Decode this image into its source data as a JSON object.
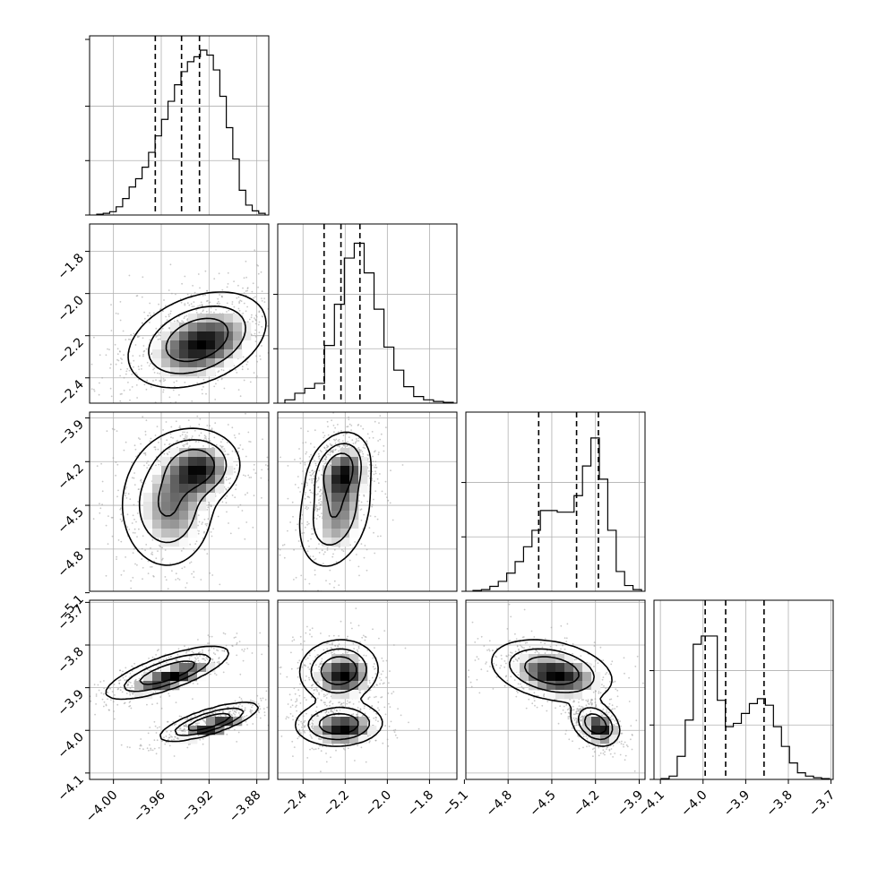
{
  "chart_data": {
    "type": "corner",
    "parameters": 4,
    "axis_labels": [
      "",
      "",
      "",
      ""
    ],
    "ticks": [
      {
        "values": [
          -4.0,
          -3.96,
          -3.92,
          -3.88
        ],
        "labels": [
          "−4.00",
          "−3.96",
          "−3.92",
          "−3.88"
        ],
        "range": [
          -4.02,
          -3.87
        ]
      },
      {
        "values": [
          -2.4,
          -2.2,
          -2.0,
          -1.8
        ],
        "labels": [
          "−2.4",
          "−2.2",
          "−2.0",
          "−1.8"
        ],
        "range": [
          -2.52,
          -1.67
        ]
      },
      {
        "values": [
          -5.1,
          -4.8,
          -4.5,
          -4.2,
          -3.9
        ],
        "labels": [
          "−5.1",
          "−4.8",
          "−4.5",
          "−4.2",
          "−3.9"
        ],
        "range": [
          -5.09,
          -3.86
        ]
      },
      {
        "values": [
          -4.1,
          -4.0,
          -3.9,
          -3.8,
          -3.7
        ],
        "labels": [
          "−4.1",
          "−4.0",
          "−3.9",
          "−3.8",
          "−3.7"
        ],
        "range": [
          -4.115,
          -3.695
        ]
      }
    ],
    "quantiles": [
      [
        -3.965,
        -3.943,
        -3.928
      ],
      [
        -2.3,
        -2.22,
        -2.13
      ],
      [
        -4.59,
        -4.33,
        -4.18
      ],
      [
        -3.995,
        -3.947,
        -3.857
      ]
    ],
    "marginals": [
      [
        0.005,
        0.01,
        0.02,
        0.05,
        0.1,
        0.17,
        0.22,
        0.29,
        0.38,
        0.48,
        0.58,
        0.69,
        0.79,
        0.87,
        0.93,
        0.96,
        1.0,
        0.97,
        0.88,
        0.72,
        0.53,
        0.34,
        0.15,
        0.06,
        0.025,
        0.01
      ],
      [
        0.02,
        0.06,
        0.09,
        0.12,
        0.35,
        0.6,
        0.88,
        0.97,
        0.79,
        0.57,
        0.34,
        0.2,
        0.1,
        0.04,
        0.02,
        0.01,
        0.005
      ],
      [
        0.005,
        0.01,
        0.03,
        0.06,
        0.11,
        0.18,
        0.27,
        0.37,
        0.49,
        0.49,
        0.48,
        0.48,
        0.58,
        0.76,
        0.93,
        0.68,
        0.37,
        0.12,
        0.035,
        0.01
      ],
      [
        0.005,
        0.02,
        0.14,
        0.36,
        0.82,
        0.87,
        0.87,
        0.48,
        0.32,
        0.34,
        0.4,
        0.46,
        0.49,
        0.45,
        0.32,
        0.2,
        0.1,
        0.04,
        0.02,
        0.01,
        0.005
      ]
    ],
    "contour_modes": [
      {
        "row": 1,
        "col": 0,
        "centers": [
          [
            -3.93,
            -2.22
          ]
        ],
        "spreads": [
          [
            0.028,
            0.11
          ]
        ],
        "weights": [
          1.0
        ],
        "rho": 0.35
      },
      {
        "row": 2,
        "col": 0,
        "centers": [
          [
            -3.93,
            -4.22
          ],
          [
            -3.955,
            -4.5
          ]
        ],
        "spreads": [
          [
            0.018,
            0.12
          ],
          [
            0.02,
            0.22
          ]
        ],
        "weights": [
          0.55,
          0.45
        ],
        "rho": 0.0
      },
      {
        "row": 2,
        "col": 1,
        "centers": [
          [
            -2.23,
            -4.24
          ],
          [
            -2.25,
            -4.55
          ]
        ],
        "spreads": [
          [
            0.07,
            0.12
          ],
          [
            0.09,
            0.2
          ]
        ],
        "weights": [
          0.55,
          0.45
        ],
        "rho": 0.25
      },
      {
        "row": 3,
        "col": 0,
        "centers": [
          [
            -3.955,
            -3.865
          ],
          [
            -3.92,
            -3.98
          ]
        ],
        "spreads": [
          [
            0.025,
            0.03
          ],
          [
            0.02,
            0.022
          ]
        ],
        "weights": [
          0.5,
          0.5
        ],
        "rho": 0.75
      },
      {
        "row": 3,
        "col": 1,
        "centers": [
          [
            -2.23,
            -3.86
          ],
          [
            -2.23,
            -3.985
          ]
        ],
        "spreads": [
          [
            0.09,
            0.035
          ],
          [
            0.1,
            0.025
          ]
        ],
        "weights": [
          0.5,
          0.5
        ],
        "rho": 0.05
      },
      {
        "row": 3,
        "col": 2,
        "centers": [
          [
            -4.5,
            -3.86
          ],
          [
            -4.2,
            -3.985
          ]
        ],
        "spreads": [
          [
            0.2,
            0.035
          ],
          [
            0.08,
            0.025
          ]
        ],
        "weights": [
          0.5,
          0.5
        ],
        "rho": -0.3
      }
    ],
    "grid": true,
    "colors": {
      "hist": "#000000",
      "quantile": "#000000",
      "points": "#9a9a9a",
      "grid": "#b0b0b0"
    }
  }
}
